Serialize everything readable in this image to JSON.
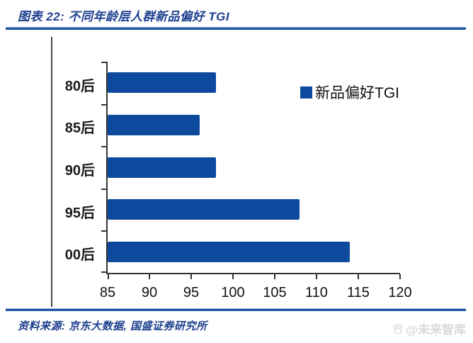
{
  "header": {
    "title": "图表 22:  不同年龄层人群新品偏好 TGI"
  },
  "chart_data": {
    "type": "bar",
    "orientation": "horizontal",
    "title": "不同年龄层人群新品偏好 TGI",
    "categories": [
      "80后",
      "85后",
      "90后",
      "95后",
      "00后"
    ],
    "values": [
      98,
      96,
      98,
      108,
      114
    ],
    "series_name": "新品偏好TGI",
    "legend": "新品偏好TGI",
    "legend_position": "inside-upper-right",
    "xlim": [
      85,
      120
    ],
    "xticks": [
      85,
      90,
      95,
      100,
      105,
      110,
      115,
      120
    ],
    "xlabel": "",
    "ylabel": "",
    "grid": false,
    "bar_color": "#0d4a9e"
  },
  "footer": {
    "source": "资料来源: 京东大数据, 国盛证券研究所",
    "watermark": "@未来智库"
  },
  "colors": {
    "accent_blue": "#0d4a9e",
    "rule_blue": "#2253a6",
    "title_navy": "#1e3f8f",
    "axis_gray": "#333333",
    "watermark_gray": "#d9d9d9"
  }
}
